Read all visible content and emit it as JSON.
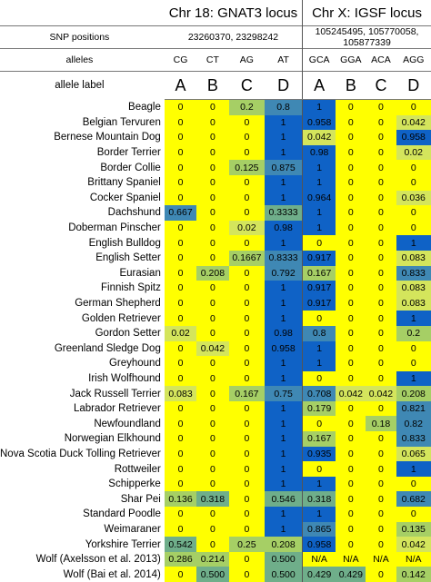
{
  "headers": {
    "gnat3_title": "Chr 18: GNAT3 locus",
    "igsf_title": "Chr X: IGSF locus",
    "snp_label": "SNP positions",
    "gnat3_snp": "23260370, 23298242",
    "igsf_snp_line1": "105245495, 105770058,",
    "igsf_snp_line2": "105877339",
    "alleles_label": "alleles",
    "allele_label_label": "allele label",
    "gnat3_alleles": [
      "CG",
      "CT",
      "AG",
      "AT"
    ],
    "igsf_alleles": [
      "GCA",
      "GGA",
      "ACA",
      "AGG"
    ],
    "gnat3_labels": [
      "A",
      "B",
      "C",
      "D"
    ],
    "igsf_labels": [
      "A",
      "B",
      "C",
      "D"
    ]
  },
  "colors": {
    "zero": "#ffff00",
    "low": "#d4e55c",
    "mid_low": "#a6cf65",
    "mid": "#6fae8a",
    "mid_high": "#3f88b4",
    "high": "#0f62c6"
  },
  "rows": [
    {
      "breed": "Beagle",
      "gnat3": [
        "0",
        "0",
        "0.2",
        "0.8"
      ],
      "igsf": [
        "1",
        "0",
        "0",
        "0"
      ]
    },
    {
      "breed": "Belgian Tervuren",
      "gnat3": [
        "0",
        "0",
        "0",
        "1"
      ],
      "igsf": [
        "0.958",
        "0",
        "0",
        "0.042"
      ]
    },
    {
      "breed": "Bernese Mountain Dog",
      "gnat3": [
        "0",
        "0",
        "0",
        "1"
      ],
      "igsf": [
        "0.042",
        "0",
        "0",
        "0.958"
      ]
    },
    {
      "breed": "Border Terrier",
      "gnat3": [
        "0",
        "0",
        "0",
        "1"
      ],
      "igsf": [
        "0.98",
        "0",
        "0",
        "0.02"
      ]
    },
    {
      "breed": "Border Collie",
      "gnat3": [
        "0",
        "0",
        "0.125",
        "0.875"
      ],
      "igsf": [
        "1",
        "0",
        "0",
        "0"
      ]
    },
    {
      "breed": "Brittany Spaniel",
      "gnat3": [
        "0",
        "0",
        "0",
        "1"
      ],
      "igsf": [
        "1",
        "0",
        "0",
        "0"
      ]
    },
    {
      "breed": "Cocker Spaniel",
      "gnat3": [
        "0",
        "0",
        "0",
        "1"
      ],
      "igsf": [
        "0.964",
        "0",
        "0",
        "0.036"
      ]
    },
    {
      "breed": "Dachshund",
      "gnat3": [
        "0.667",
        "0",
        "0",
        "0.3333"
      ],
      "igsf": [
        "1",
        "0",
        "0",
        "0"
      ]
    },
    {
      "breed": "Doberman Pinscher",
      "gnat3": [
        "0",
        "0",
        "0.02",
        "0.98"
      ],
      "igsf": [
        "1",
        "0",
        "0",
        "0"
      ]
    },
    {
      "breed": "English Bulldog",
      "gnat3": [
        "0",
        "0",
        "0",
        "1"
      ],
      "igsf": [
        "0",
        "0",
        "0",
        "1"
      ]
    },
    {
      "breed": "English Setter",
      "gnat3": [
        "0",
        "0",
        "0.1667",
        "0.8333"
      ],
      "igsf": [
        "0.917",
        "0",
        "0",
        "0.083"
      ]
    },
    {
      "breed": "Eurasian",
      "gnat3": [
        "0",
        "0.208",
        "0",
        "0.792"
      ],
      "igsf": [
        "0.167",
        "0",
        "0",
        "0.833"
      ]
    },
    {
      "breed": "Finnish Spitz",
      "gnat3": [
        "0",
        "0",
        "0",
        "1"
      ],
      "igsf": [
        "0.917",
        "0",
        "0",
        "0.083"
      ]
    },
    {
      "breed": "German Shepherd",
      "gnat3": [
        "0",
        "0",
        "0",
        "1"
      ],
      "igsf": [
        "0.917",
        "0",
        "0",
        "0.083"
      ]
    },
    {
      "breed": "Golden Retriever",
      "gnat3": [
        "0",
        "0",
        "0",
        "1"
      ],
      "igsf": [
        "0",
        "0",
        "0",
        "1"
      ]
    },
    {
      "breed": "Gordon Setter",
      "gnat3": [
        "0.02",
        "0",
        "0",
        "0.98"
      ],
      "igsf": [
        "0.8",
        "0",
        "0",
        "0.2"
      ]
    },
    {
      "breed": "Greenland Sledge Dog",
      "gnat3": [
        "0",
        "0.042",
        "0",
        "0.958"
      ],
      "igsf": [
        "1",
        "0",
        "0",
        "0"
      ]
    },
    {
      "breed": "Greyhound",
      "gnat3": [
        "0",
        "0",
        "0",
        "1"
      ],
      "igsf": [
        "1",
        "0",
        "0",
        "0"
      ]
    },
    {
      "breed": "Irish Wolfhound",
      "gnat3": [
        "0",
        "0",
        "0",
        "1"
      ],
      "igsf": [
        "0",
        "0",
        "0",
        "1"
      ]
    },
    {
      "breed": "Jack Russell Terrier",
      "gnat3": [
        "0.083",
        "0",
        "0.167",
        "0.75"
      ],
      "igsf": [
        "0.708",
        "0.042",
        "0.042",
        "0.208"
      ]
    },
    {
      "breed": "Labrador Retriever",
      "gnat3": [
        "0",
        "0",
        "0",
        "1"
      ],
      "igsf": [
        "0.179",
        "0",
        "0",
        "0.821"
      ]
    },
    {
      "breed": "Newfoundland",
      "gnat3": [
        "0",
        "0",
        "0",
        "1"
      ],
      "igsf": [
        "0",
        "0",
        "0.18",
        "0.82"
      ]
    },
    {
      "breed": "Norwegian Elkhound",
      "gnat3": [
        "0",
        "0",
        "0",
        "1"
      ],
      "igsf": [
        "0.167",
        "0",
        "0",
        "0.833"
      ]
    },
    {
      "breed": "Nova Scotia Duck Tolling Retriever",
      "gnat3": [
        "0",
        "0",
        "0",
        "1"
      ],
      "igsf": [
        "0.935",
        "0",
        "0",
        "0.065"
      ]
    },
    {
      "breed": "Rottweiler",
      "gnat3": [
        "0",
        "0",
        "0",
        "1"
      ],
      "igsf": [
        "0",
        "0",
        "0",
        "1"
      ]
    },
    {
      "breed": "Schipperke",
      "gnat3": [
        "0",
        "0",
        "0",
        "1"
      ],
      "igsf": [
        "1",
        "0",
        "0",
        "0"
      ]
    },
    {
      "breed": "Shar Pei",
      "gnat3": [
        "0.136",
        "0.318",
        "0",
        "0.546"
      ],
      "igsf": [
        "0.318",
        "0",
        "0",
        "0.682"
      ]
    },
    {
      "breed": "Standard Poodle",
      "gnat3": [
        "0",
        "0",
        "0",
        "1"
      ],
      "igsf": [
        "1",
        "0",
        "0",
        "0"
      ]
    },
    {
      "breed": "Weimaraner",
      "gnat3": [
        "0",
        "0",
        "0",
        "1"
      ],
      "igsf": [
        "0.865",
        "0",
        "0",
        "0.135"
      ]
    },
    {
      "breed": "Yorkshire Terrier",
      "gnat3": [
        "0.542",
        "0",
        "0.25",
        "0.208"
      ],
      "igsf": [
        "0.958",
        "0",
        "0",
        "0.042"
      ]
    },
    {
      "breed": "Wolf (Axelsson et al. 2013)",
      "gnat3": [
        "0.286",
        "0.214",
        "0",
        "0.500"
      ],
      "igsf": [
        "N/A",
        "N/A",
        "N/A",
        "N/A"
      ]
    },
    {
      "breed": "Wolf (Bai et al. 2014)",
      "gnat3": [
        "0",
        "0.500",
        "0",
        "0.500"
      ],
      "igsf": [
        "0.429",
        "0.429",
        "0",
        "0.142"
      ]
    }
  ]
}
